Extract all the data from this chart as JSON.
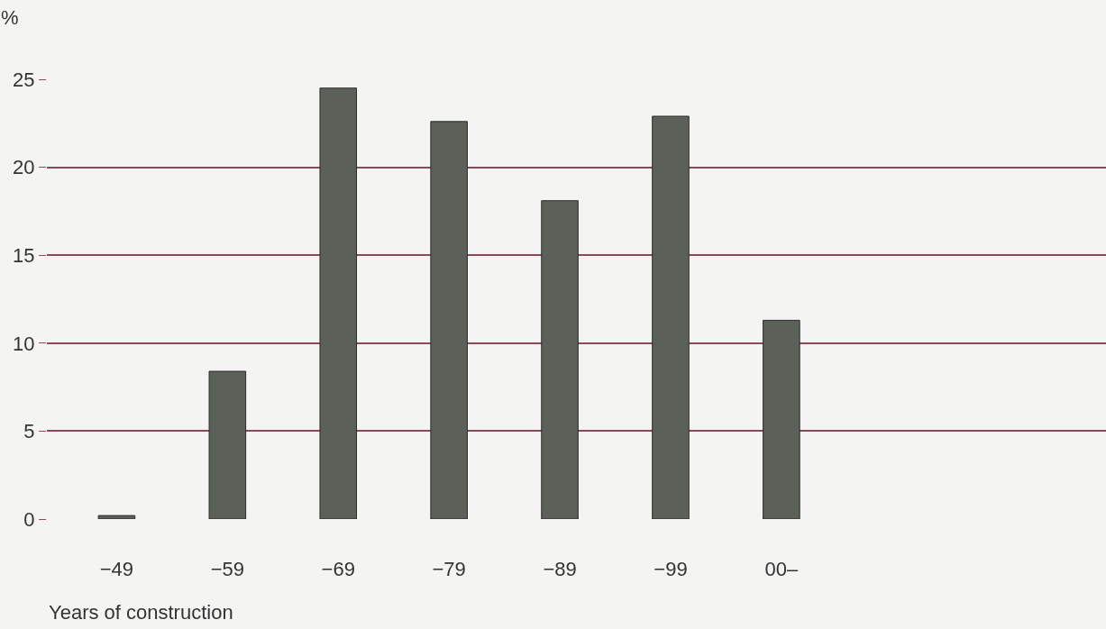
{
  "chart_data": {
    "type": "bar",
    "ylabel": "%",
    "xlabel": "Years of construction",
    "categories": [
      "−49",
      "−59",
      "−69",
      "−79",
      "−89",
      "−99",
      "00–"
    ],
    "values": [
      0.2,
      8.4,
      24.5,
      22.6,
      18.1,
      22.9,
      11.3
    ],
    "color": "#5b6159",
    "ylim": [
      0,
      25
    ],
    "yticks": [
      0,
      5,
      10,
      15,
      20,
      25
    ],
    "grid": "y"
  }
}
